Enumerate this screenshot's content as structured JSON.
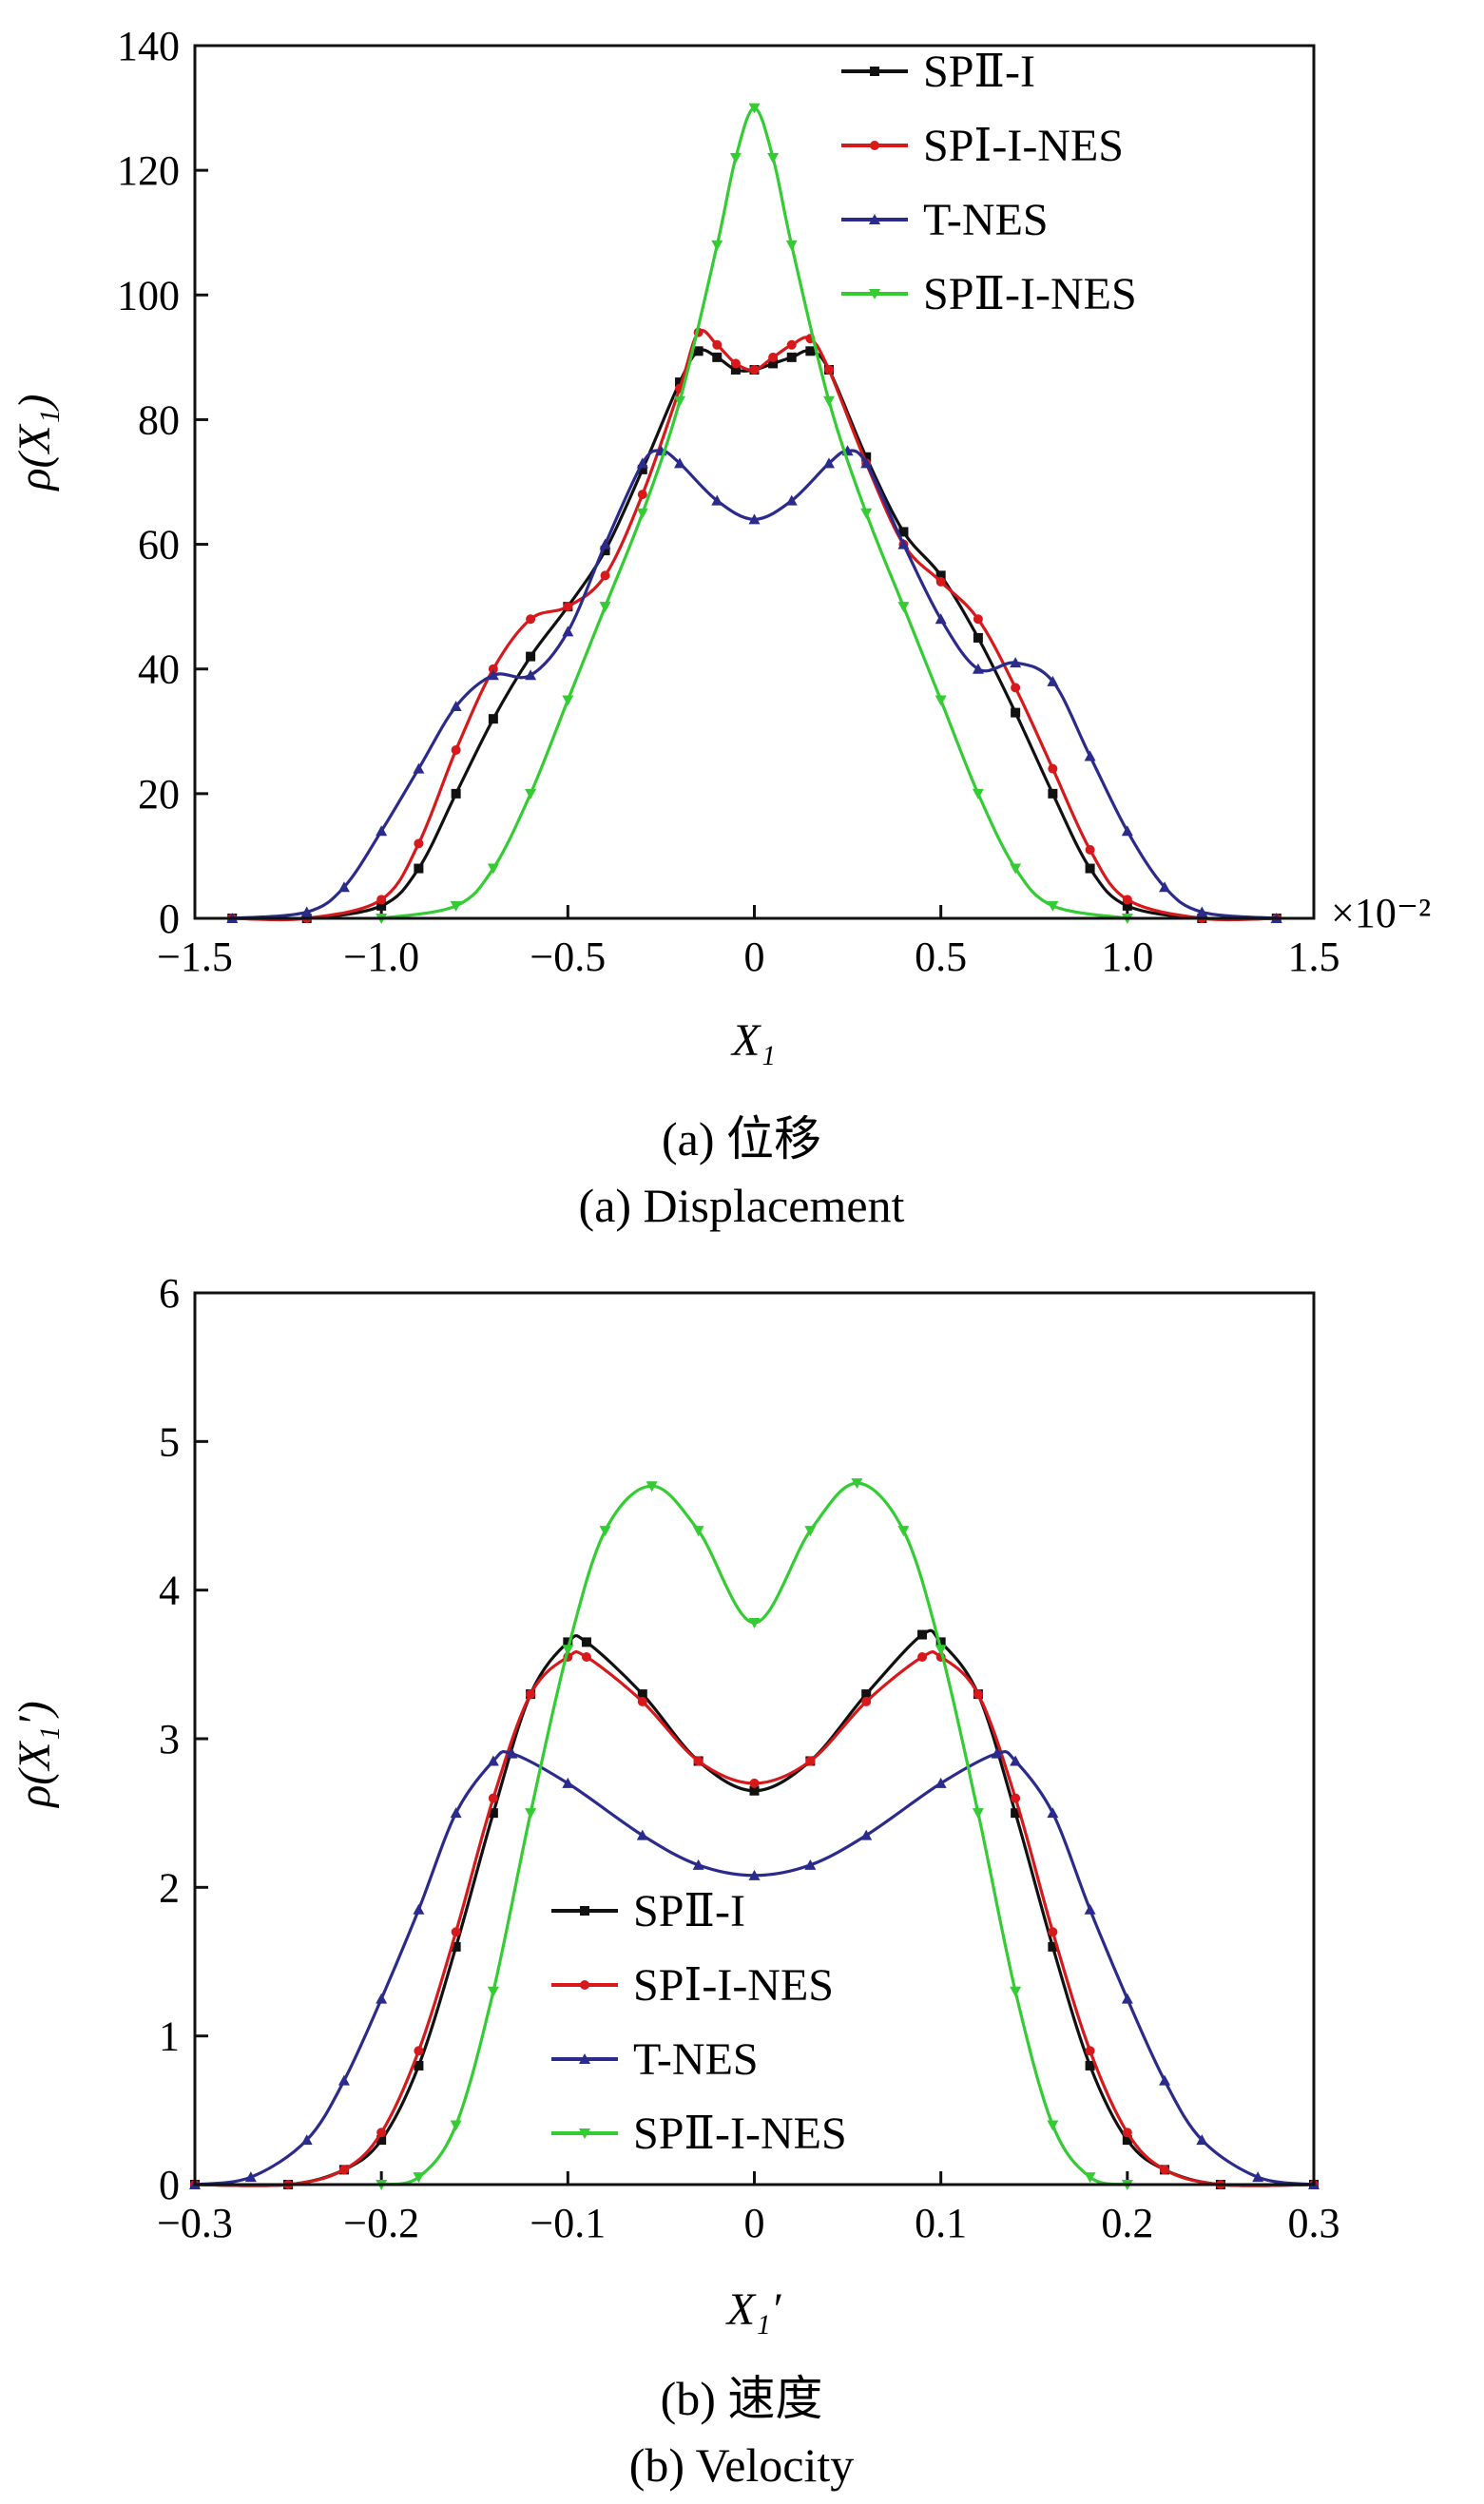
{
  "chart_data": [
    {
      "type": "line",
      "panel": "a",
      "xlabel": "X₁",
      "ylabel": "ρ(X₁)",
      "x_multiplier": "×10⁻²",
      "xlim": [
        -1.5,
        1.5
      ],
      "ylim": [
        0,
        140
      ],
      "xticks": [
        "−1.5",
        "−1.0",
        "−0.5",
        "0",
        "0.5",
        "1.0",
        "1.5"
      ],
      "yticks": [
        "0",
        "20",
        "40",
        "60",
        "80",
        "100",
        "120",
        "140"
      ],
      "caption_cn": "(a)  位移",
      "caption_en": "(a)  Displacement",
      "legend": "top-right",
      "series": [
        {
          "name": "SPⅡ-I",
          "color": "#111111",
          "marker": "square",
          "x": [
            -1.4,
            -1.2,
            -1.0,
            -0.9,
            -0.8,
            -0.7,
            -0.6,
            -0.5,
            -0.4,
            -0.3,
            -0.2,
            -0.15,
            -0.1,
            -0.05,
            0,
            0.05,
            0.1,
            0.15,
            0.2,
            0.3,
            0.4,
            0.5,
            0.6,
            0.7,
            0.8,
            0.9,
            1.0,
            1.2,
            1.4
          ],
          "values": [
            0,
            0,
            2,
            8,
            20,
            32,
            42,
            50,
            59,
            72,
            86,
            91,
            90,
            88,
            88,
            89,
            90,
            91,
            88,
            74,
            62,
            55,
            45,
            33,
            20,
            8,
            2,
            0,
            0
          ]
        },
        {
          "name": "SPⅠ-I-NES",
          "color": "#d7191c",
          "marker": "circle",
          "x": [
            -1.4,
            -1.2,
            -1.0,
            -0.9,
            -0.8,
            -0.7,
            -0.6,
            -0.5,
            -0.4,
            -0.3,
            -0.2,
            -0.15,
            -0.1,
            -0.05,
            0,
            0.05,
            0.1,
            0.15,
            0.2,
            0.3,
            0.4,
            0.5,
            0.6,
            0.7,
            0.8,
            0.9,
            1.0,
            1.2,
            1.4
          ],
          "values": [
            0,
            0,
            3,
            12,
            27,
            40,
            48,
            50,
            55,
            68,
            85,
            94,
            92,
            89,
            88,
            90,
            92,
            93,
            88,
            73,
            60,
            54,
            48,
            37,
            24,
            11,
            3,
            0,
            0
          ]
        },
        {
          "name": "T-NES",
          "color": "#2b2b8c",
          "marker": "triangle",
          "x": [
            -1.4,
            -1.2,
            -1.1,
            -1.0,
            -0.9,
            -0.8,
            -0.7,
            -0.6,
            -0.5,
            -0.4,
            -0.3,
            -0.25,
            -0.2,
            -0.1,
            0,
            0.1,
            0.2,
            0.25,
            0.3,
            0.4,
            0.5,
            0.6,
            0.7,
            0.8,
            0.9,
            1.0,
            1.1,
            1.2,
            1.4
          ],
          "values": [
            0,
            1,
            5,
            14,
            24,
            34,
            39,
            39,
            46,
            60,
            73,
            75,
            73,
            67,
            64,
            67,
            73,
            75,
            73,
            60,
            48,
            40,
            41,
            38,
            26,
            14,
            5,
            1,
            0
          ]
        },
        {
          "name": "SPⅡ-I-NES",
          "color": "#33cc33",
          "marker": "down-triangle",
          "x": [
            -1.0,
            -0.8,
            -0.7,
            -0.6,
            -0.5,
            -0.4,
            -0.3,
            -0.2,
            -0.1,
            -0.05,
            0,
            0.05,
            0.1,
            0.2,
            0.3,
            0.4,
            0.5,
            0.6,
            0.7,
            0.8,
            1.0
          ],
          "values": [
            0,
            2,
            8,
            20,
            35,
            50,
            65,
            83,
            108,
            122,
            130,
            122,
            108,
            83,
            65,
            50,
            35,
            20,
            8,
            2,
            0
          ]
        }
      ]
    },
    {
      "type": "line",
      "panel": "b",
      "xlabel": "X₁′",
      "ylabel": "ρ(X₁′)",
      "xlim": [
        -0.3,
        0.3
      ],
      "ylim": [
        0,
        6
      ],
      "xticks": [
        "−0.3",
        "−0.2",
        "−0.1",
        "0",
        "0.1",
        "0.2",
        "0.3"
      ],
      "yticks": [
        "0",
        "1",
        "2",
        "3",
        "4",
        "5",
        "6"
      ],
      "caption_cn": "(b)  速度",
      "caption_en": "(b)  Velocity",
      "legend": "bottom-center",
      "series": [
        {
          "name": "SPⅡ-I",
          "color": "#111111",
          "marker": "square",
          "x": [
            -0.3,
            -0.25,
            -0.22,
            -0.2,
            -0.18,
            -0.16,
            -0.14,
            -0.12,
            -0.1,
            -0.09,
            -0.06,
            -0.03,
            0,
            0.03,
            0.06,
            0.09,
            0.1,
            0.12,
            0.14,
            0.16,
            0.18,
            0.2,
            0.22,
            0.25,
            0.3
          ],
          "values": [
            0,
            0,
            0.1,
            0.3,
            0.8,
            1.6,
            2.5,
            3.3,
            3.65,
            3.65,
            3.3,
            2.85,
            2.65,
            2.85,
            3.3,
            3.7,
            3.65,
            3.3,
            2.5,
            1.6,
            0.8,
            0.3,
            0.1,
            0,
            0
          ]
        },
        {
          "name": "SPⅠ-I-NES",
          "color": "#d7191c",
          "marker": "circle",
          "x": [
            -0.3,
            -0.25,
            -0.22,
            -0.2,
            -0.18,
            -0.16,
            -0.14,
            -0.12,
            -0.1,
            -0.09,
            -0.06,
            -0.03,
            0,
            0.03,
            0.06,
            0.09,
            0.1,
            0.12,
            0.14,
            0.16,
            0.18,
            0.2,
            0.22,
            0.25,
            0.3
          ],
          "values": [
            0,
            0,
            0.1,
            0.35,
            0.9,
            1.7,
            2.6,
            3.3,
            3.55,
            3.55,
            3.25,
            2.85,
            2.7,
            2.85,
            3.25,
            3.55,
            3.55,
            3.3,
            2.6,
            1.7,
            0.9,
            0.35,
            0.1,
            0,
            0
          ]
        },
        {
          "name": "T-NES",
          "color": "#2b2b8c",
          "marker": "triangle",
          "x": [
            -0.3,
            -0.27,
            -0.24,
            -0.22,
            -0.2,
            -0.18,
            -0.16,
            -0.14,
            -0.13,
            -0.1,
            -0.06,
            -0.03,
            0,
            0.03,
            0.06,
            0.1,
            0.13,
            0.14,
            0.16,
            0.18,
            0.2,
            0.22,
            0.24,
            0.27,
            0.3
          ],
          "values": [
            0,
            0.05,
            0.3,
            0.7,
            1.25,
            1.85,
            2.5,
            2.85,
            2.9,
            2.7,
            2.35,
            2.15,
            2.08,
            2.15,
            2.35,
            2.7,
            2.9,
            2.85,
            2.5,
            1.85,
            1.25,
            0.7,
            0.3,
            0.05,
            0
          ]
        },
        {
          "name": "SPⅡ-I-NES",
          "color": "#33cc33",
          "marker": "down-triangle",
          "x": [
            -0.2,
            -0.18,
            -0.16,
            -0.14,
            -0.12,
            -0.1,
            -0.08,
            -0.055,
            -0.03,
            0,
            0.03,
            0.055,
            0.08,
            0.1,
            0.12,
            0.14,
            0.16,
            0.18,
            0.2
          ],
          "values": [
            0,
            0.05,
            0.4,
            1.3,
            2.5,
            3.6,
            4.4,
            4.7,
            4.4,
            3.78,
            4.4,
            4.72,
            4.4,
            3.6,
            2.5,
            1.3,
            0.4,
            0.05,
            0
          ]
        }
      ]
    }
  ]
}
